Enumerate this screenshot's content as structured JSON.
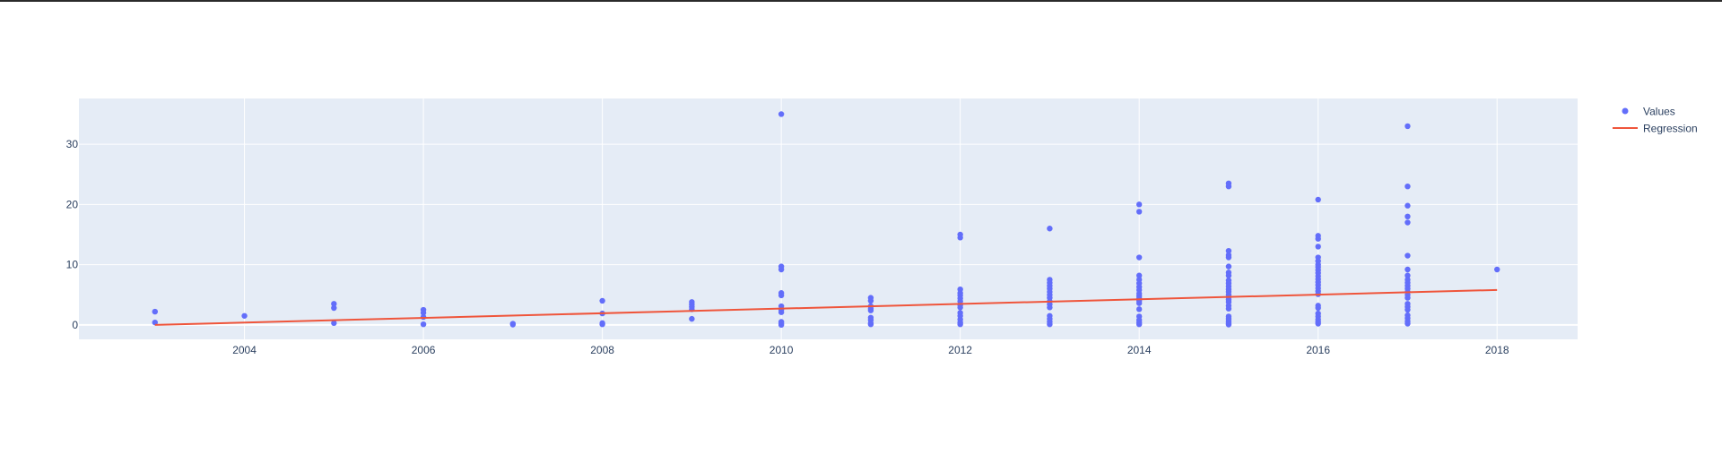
{
  "chart_data": {
    "type": "scatter",
    "title": "",
    "xlabel": "",
    "ylabel": "",
    "xlim": [
      2002.15,
      2018.9
    ],
    "ylim": [
      -2.4,
      37.6
    ],
    "x_ticks": [
      2004,
      2006,
      2008,
      2010,
      2012,
      2014,
      2016,
      2018
    ],
    "y_ticks": [
      0,
      10,
      20,
      30
    ],
    "grid": true,
    "legend_position": "top-right",
    "colors": {
      "plot_background": "#e5ecf6",
      "grid": "#ffffff",
      "points": "#636efa",
      "regression": "#ef553b"
    },
    "series": [
      {
        "name": "Values",
        "mode": "markers",
        "points": [
          [
            2003,
            2.2
          ],
          [
            2003,
            0.4
          ],
          [
            2004,
            1.5
          ],
          [
            2005,
            3.5
          ],
          [
            2005,
            2.8
          ],
          [
            2005,
            0.3
          ],
          [
            2006,
            2.5
          ],
          [
            2006,
            2.0
          ],
          [
            2006,
            1.3
          ],
          [
            2006,
            0.1
          ],
          [
            2007,
            0.2
          ],
          [
            2007,
            0.05
          ],
          [
            2008,
            4.0
          ],
          [
            2008,
            1.9
          ],
          [
            2008,
            0.3
          ],
          [
            2008,
            0.1
          ],
          [
            2009,
            3.8
          ],
          [
            2009,
            3.4
          ],
          [
            2009,
            3.0
          ],
          [
            2009,
            2.6
          ],
          [
            2009,
            1.0
          ],
          [
            2010,
            35.0
          ],
          [
            2010,
            9.7
          ],
          [
            2010,
            9.2
          ],
          [
            2010,
            5.3
          ],
          [
            2010,
            4.9
          ],
          [
            2010,
            3.1
          ],
          [
            2010,
            2.5
          ],
          [
            2010,
            2.1
          ],
          [
            2010,
            0.5
          ],
          [
            2010,
            0.2
          ],
          [
            2010,
            0.0
          ],
          [
            2011,
            4.5
          ],
          [
            2011,
            4.0
          ],
          [
            2011,
            3.1
          ],
          [
            2011,
            2.7
          ],
          [
            2011,
            2.4
          ],
          [
            2011,
            1.2
          ],
          [
            2011,
            0.8
          ],
          [
            2011,
            0.3
          ],
          [
            2011,
            0.1
          ],
          [
            2012,
            15.0
          ],
          [
            2012,
            14.5
          ],
          [
            2012,
            5.9
          ],
          [
            2012,
            5.3
          ],
          [
            2012,
            4.9
          ],
          [
            2012,
            4.4
          ],
          [
            2012,
            3.9
          ],
          [
            2012,
            3.3
          ],
          [
            2012,
            2.9
          ],
          [
            2012,
            2.0
          ],
          [
            2012,
            1.5
          ],
          [
            2012,
            0.9
          ],
          [
            2012,
            0.4
          ],
          [
            2012,
            0.1
          ],
          [
            2013,
            16.0
          ],
          [
            2013,
            7.5
          ],
          [
            2013,
            7.0
          ],
          [
            2013,
            6.5
          ],
          [
            2013,
            6.0
          ],
          [
            2013,
            5.5
          ],
          [
            2013,
            5.0
          ],
          [
            2013,
            4.5
          ],
          [
            2013,
            3.9
          ],
          [
            2013,
            3.4
          ],
          [
            2013,
            2.9
          ],
          [
            2013,
            1.5
          ],
          [
            2013,
            1.0
          ],
          [
            2013,
            0.5
          ],
          [
            2013,
            0.1
          ],
          [
            2014,
            20.0
          ],
          [
            2014,
            18.8
          ],
          [
            2014,
            11.2
          ],
          [
            2014,
            8.2
          ],
          [
            2014,
            7.5
          ],
          [
            2014,
            6.9
          ],
          [
            2014,
            6.3
          ],
          [
            2014,
            5.8
          ],
          [
            2014,
            5.2
          ],
          [
            2014,
            4.8
          ],
          [
            2014,
            4.4
          ],
          [
            2014,
            4.0
          ],
          [
            2014,
            3.6
          ],
          [
            2014,
            2.6
          ],
          [
            2014,
            1.4
          ],
          [
            2014,
            0.8
          ],
          [
            2014,
            0.4
          ],
          [
            2014,
            0.1
          ],
          [
            2015,
            23.5
          ],
          [
            2015,
            23.0
          ],
          [
            2015,
            12.3
          ],
          [
            2015,
            11.6
          ],
          [
            2015,
            11.2
          ],
          [
            2015,
            9.7
          ],
          [
            2015,
            8.7
          ],
          [
            2015,
            8.2
          ],
          [
            2015,
            7.4
          ],
          [
            2015,
            6.9
          ],
          [
            2015,
            6.4
          ],
          [
            2015,
            5.9
          ],
          [
            2015,
            5.5
          ],
          [
            2015,
            5.0
          ],
          [
            2015,
            4.6
          ],
          [
            2015,
            4.2
          ],
          [
            2015,
            3.8
          ],
          [
            2015,
            3.2
          ],
          [
            2015,
            2.7
          ],
          [
            2015,
            1.4
          ],
          [
            2015,
            1.0
          ],
          [
            2015,
            0.6
          ],
          [
            2015,
            0.3
          ],
          [
            2015,
            0.05
          ],
          [
            2016,
            20.8
          ],
          [
            2016,
            14.8
          ],
          [
            2016,
            14.3
          ],
          [
            2016,
            13.0
          ],
          [
            2016,
            11.2
          ],
          [
            2016,
            10.6
          ],
          [
            2016,
            10.0
          ],
          [
            2016,
            9.6
          ],
          [
            2016,
            9.1
          ],
          [
            2016,
            8.6
          ],
          [
            2016,
            8.1
          ],
          [
            2016,
            7.6
          ],
          [
            2016,
            7.1
          ],
          [
            2016,
            6.6
          ],
          [
            2016,
            6.1
          ],
          [
            2016,
            5.6
          ],
          [
            2016,
            5.1
          ],
          [
            2016,
            3.2
          ],
          [
            2016,
            2.8
          ],
          [
            2016,
            1.9
          ],
          [
            2016,
            1.4
          ],
          [
            2016,
            0.9
          ],
          [
            2016,
            0.5
          ],
          [
            2016,
            0.2
          ],
          [
            2017,
            33.0
          ],
          [
            2017,
            23.0
          ],
          [
            2017,
            19.8
          ],
          [
            2017,
            18.0
          ],
          [
            2017,
            17.0
          ],
          [
            2017,
            11.5
          ],
          [
            2017,
            9.2
          ],
          [
            2017,
            8.2
          ],
          [
            2017,
            7.5
          ],
          [
            2017,
            7.0
          ],
          [
            2017,
            6.5
          ],
          [
            2017,
            6.0
          ],
          [
            2017,
            5.5
          ],
          [
            2017,
            5.0
          ],
          [
            2017,
            4.5
          ],
          [
            2017,
            3.5
          ],
          [
            2017,
            3.0
          ],
          [
            2017,
            2.5
          ],
          [
            2017,
            1.6
          ],
          [
            2017,
            1.1
          ],
          [
            2017,
            0.6
          ],
          [
            2017,
            0.2
          ],
          [
            2018,
            9.2
          ]
        ]
      },
      {
        "name": "Regression",
        "mode": "line",
        "points": [
          [
            2003,
            0.0
          ],
          [
            2018,
            5.8
          ]
        ]
      }
    ]
  }
}
